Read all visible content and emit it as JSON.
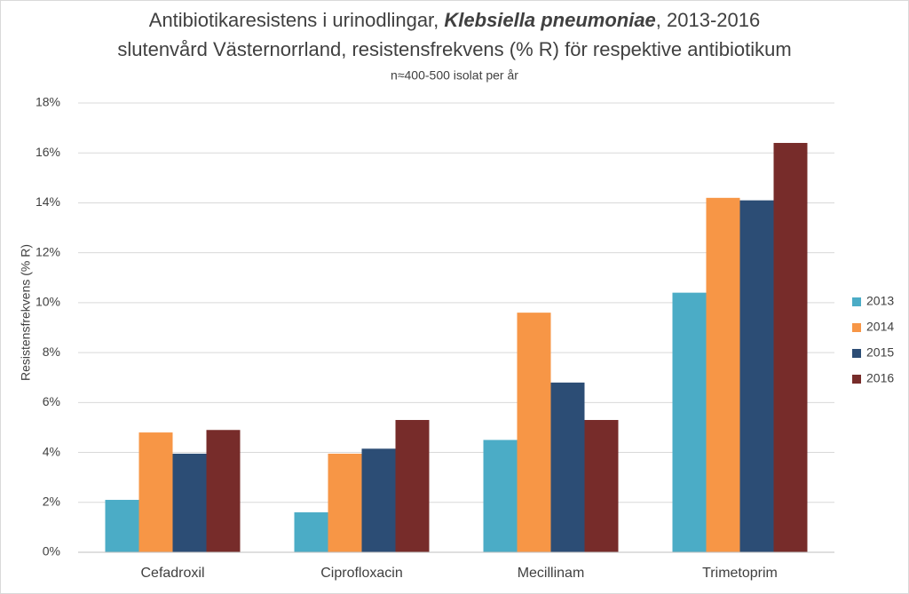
{
  "chart_data": {
    "type": "bar",
    "title": [
      "Antibiotikaresistens i urinodlingar, ",
      "Klebsiella pneumoniae",
      ", 2013-2016"
    ],
    "subtitle": "slutenvård Västernorrland, resistensfrekvens (% R) för respektive antibiotikum",
    "note": "n≈400-500 isolat per år",
    "y_label": "Resistensfrekvens (% R)",
    "categories": [
      "Cefadroxil",
      "Ciprofloxacin",
      "Mecillinam",
      "Trimetoprim"
    ],
    "series": [
      {
        "name": "2013",
        "color": "#4bacc6",
        "values": [
          2.1,
          1.6,
          4.5,
          10.4
        ]
      },
      {
        "name": "2014",
        "color": "#f79646",
        "values": [
          4.8,
          3.95,
          9.6,
          14.2
        ]
      },
      {
        "name": "2015",
        "color": "#2c4d75",
        "values": [
          3.95,
          4.15,
          6.8,
          14.1
        ]
      },
      {
        "name": "2016",
        "color": "#772c2a",
        "values": [
          4.9,
          5.3,
          5.3,
          16.4
        ]
      }
    ],
    "ylim": [
      0,
      18
    ],
    "yticks": [
      {
        "value": 0,
        "label": "0%"
      },
      {
        "value": 2,
        "label": "2%"
      },
      {
        "value": 4,
        "label": "4%"
      },
      {
        "value": 6,
        "label": "6%"
      },
      {
        "value": 8,
        "label": "8%"
      },
      {
        "value": 10,
        "label": "10%"
      },
      {
        "value": 12,
        "label": "12%"
      },
      {
        "value": 14,
        "label": "14%"
      },
      {
        "value": 16,
        "label": "16%"
      },
      {
        "value": 18,
        "label": "18%"
      }
    ],
    "grid": true,
    "legend": "right"
  }
}
